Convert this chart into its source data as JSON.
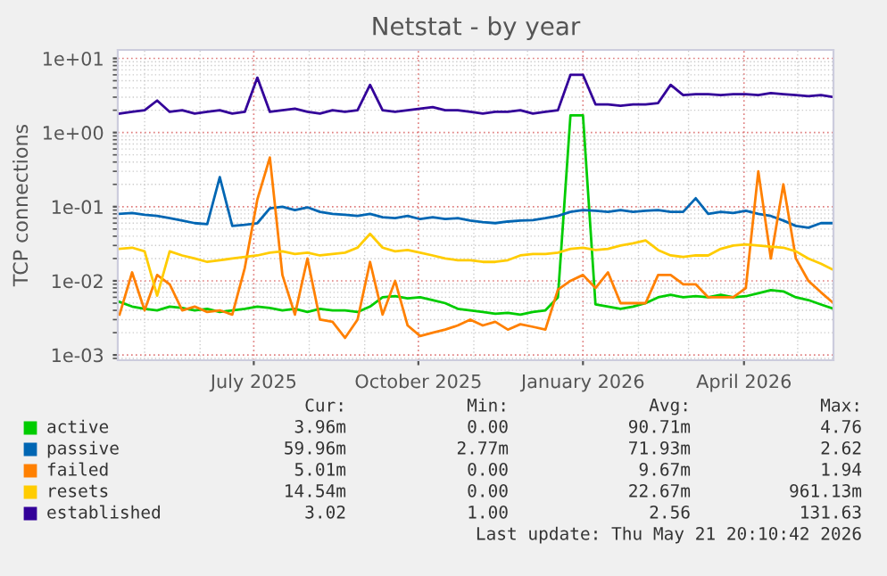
{
  "chart_data": {
    "type": "line",
    "title": "Netstat - by year",
    "ylabel": "TCP connections",
    "log": true,
    "grid": true,
    "legend": "bottom",
    "xlim": [
      "2025-04-16",
      "2026-05-21"
    ],
    "xticks": [
      {
        "value": "2025-07-01",
        "label": "July 2025"
      },
      {
        "value": "2025-10-01",
        "label": "October 2025"
      },
      {
        "value": "2026-01-01",
        "label": "January 2026"
      },
      {
        "value": "2026-04-01",
        "label": "April 2026"
      }
    ],
    "ylim": [
      0.00085,
      13
    ],
    "yticks": [
      {
        "value": 0.001,
        "label": "1e-03"
      },
      {
        "value": 0.01,
        "label": "1e-02"
      },
      {
        "value": 0.1,
        "label": "1e-01"
      },
      {
        "value": 1,
        "label": "1e+00"
      },
      {
        "value": 10,
        "label": "1e+01"
      }
    ],
    "x": [
      "2025-04-17",
      "2025-04-24",
      "2025-05-01",
      "2025-05-08",
      "2025-05-15",
      "2025-05-22",
      "2025-05-29",
      "2025-06-05",
      "2025-06-12",
      "2025-06-19",
      "2025-06-26",
      "2025-07-03",
      "2025-07-10",
      "2025-07-17",
      "2025-07-24",
      "2025-07-31",
      "2025-08-07",
      "2025-08-14",
      "2025-08-21",
      "2025-08-28",
      "2025-09-04",
      "2025-09-11",
      "2025-09-18",
      "2025-09-25",
      "2025-10-02",
      "2025-10-09",
      "2025-10-16",
      "2025-10-23",
      "2025-10-30",
      "2025-11-06",
      "2025-11-13",
      "2025-11-20",
      "2025-11-27",
      "2025-12-04",
      "2025-12-11",
      "2025-12-18",
      "2025-12-25",
      "2026-01-01",
      "2026-01-08",
      "2026-01-15",
      "2026-01-22",
      "2026-01-29",
      "2026-02-05",
      "2026-02-12",
      "2026-02-19",
      "2026-02-26",
      "2026-03-05",
      "2026-03-12",
      "2026-03-19",
      "2026-03-26",
      "2026-04-02",
      "2026-04-09",
      "2026-04-16",
      "2026-04-23",
      "2026-04-30",
      "2026-05-07",
      "2026-05-14",
      "2026-05-21"
    ],
    "series": [
      {
        "name": "active",
        "color": "#00cc00",
        "values": [
          0.0052,
          0.0045,
          0.0042,
          0.004,
          0.0045,
          0.0043,
          0.004,
          0.0042,
          0.0038,
          0.004,
          0.0042,
          0.0045,
          0.0043,
          0.004,
          0.0042,
          0.0038,
          0.0042,
          0.004,
          0.004,
          0.0038,
          0.0045,
          0.006,
          0.0062,
          0.0058,
          0.006,
          0.0055,
          0.005,
          0.0042,
          0.004,
          0.0038,
          0.0036,
          0.0037,
          0.0035,
          0.0038,
          0.004,
          0.006,
          1.7,
          1.7,
          0.0048,
          0.0045,
          0.0042,
          0.0045,
          0.005,
          0.006,
          0.0065,
          0.006,
          0.0062,
          0.006,
          0.0065,
          0.006,
          0.0062,
          0.0068,
          0.0075,
          0.0072,
          0.006,
          0.0055,
          0.0048,
          0.0042
        ]
      },
      {
        "name": "passive",
        "color": "#0066b3",
        "values": [
          0.08,
          0.082,
          0.078,
          0.075,
          0.07,
          0.065,
          0.06,
          0.058,
          0.25,
          0.055,
          0.057,
          0.06,
          0.095,
          0.1,
          0.09,
          0.098,
          0.085,
          0.08,
          0.078,
          0.075,
          0.08,
          0.072,
          0.07,
          0.075,
          0.068,
          0.072,
          0.068,
          0.07,
          0.065,
          0.062,
          0.06,
          0.063,
          0.065,
          0.066,
          0.07,
          0.075,
          0.085,
          0.09,
          0.088,
          0.085,
          0.09,
          0.085,
          0.088,
          0.09,
          0.085,
          0.085,
          0.13,
          0.08,
          0.085,
          0.082,
          0.088,
          0.08,
          0.075,
          0.065,
          0.055,
          0.052,
          0.06,
          0.06
        ]
      },
      {
        "name": "failed",
        "color": "#ff8000",
        "values": [
          0.0035,
          0.013,
          0.004,
          0.012,
          0.009,
          0.004,
          0.0045,
          0.0038,
          0.004,
          0.0035,
          0.015,
          0.125,
          0.46,
          0.012,
          0.0035,
          0.02,
          0.003,
          0.0028,
          0.0017,
          0.003,
          0.018,
          0.0035,
          0.01,
          0.0025,
          0.0018,
          0.002,
          0.0022,
          0.0025,
          0.003,
          0.0025,
          0.0028,
          0.0022,
          0.0026,
          0.0024,
          0.0022,
          0.0076,
          0.01,
          0.012,
          0.008,
          0.013,
          0.005,
          0.005,
          0.005,
          0.012,
          0.012,
          0.009,
          0.009,
          0.006,
          0.006,
          0.006,
          0.008,
          0.3,
          0.02,
          0.2,
          0.02,
          0.01,
          0.007,
          0.005
        ]
      },
      {
        "name": "resets",
        "color": "#ffcc00",
        "values": [
          0.027,
          0.028,
          0.025,
          0.0063,
          0.025,
          0.022,
          0.02,
          0.018,
          0.019,
          0.02,
          0.021,
          0.022,
          0.024,
          0.025,
          0.023,
          0.024,
          0.022,
          0.023,
          0.024,
          0.028,
          0.043,
          0.028,
          0.025,
          0.026,
          0.024,
          0.022,
          0.02,
          0.019,
          0.019,
          0.018,
          0.018,
          0.019,
          0.022,
          0.023,
          0.023,
          0.024,
          0.027,
          0.028,
          0.026,
          0.027,
          0.03,
          0.032,
          0.035,
          0.026,
          0.022,
          0.021,
          0.022,
          0.022,
          0.027,
          0.03,
          0.031,
          0.03,
          0.029,
          0.028,
          0.025,
          0.02,
          0.017,
          0.014
        ]
      },
      {
        "name": "established",
        "color": "#330099",
        "values": [
          1.8,
          1.9,
          2.0,
          2.7,
          1.9,
          2.0,
          1.8,
          1.9,
          2.0,
          1.8,
          1.9,
          5.5,
          1.9,
          2.0,
          2.1,
          1.9,
          1.8,
          2.0,
          1.9,
          2.0,
          4.4,
          2.0,
          1.9,
          2.0,
          2.1,
          2.2,
          2.0,
          2.0,
          1.9,
          1.8,
          1.9,
          1.9,
          2.0,
          1.8,
          1.9,
          2.0,
          6.0,
          6.0,
          2.4,
          2.4,
          2.3,
          2.4,
          2.4,
          2.5,
          4.4,
          3.2,
          3.3,
          3.3,
          3.2,
          3.3,
          3.3,
          3.2,
          3.4,
          3.3,
          3.2,
          3.1,
          3.2,
          3.0
        ]
      }
    ],
    "annotations": [
      "Cur:",
      "Min:",
      "Avg:",
      "Max:",
      "3.96m",
      "0.00",
      "90.71m",
      "4.76",
      "59.96m",
      "2.77m",
      "71.93m",
      "2.62",
      "5.01m",
      "0.00",
      "9.67m",
      "1.94",
      "14.54m",
      "0.00",
      "22.67m",
      "961.13m",
      "3.02",
      "1.00",
      "2.56",
      "131.63",
      "Last update: Thu May 21 20:10:42 2026"
    ]
  }
}
